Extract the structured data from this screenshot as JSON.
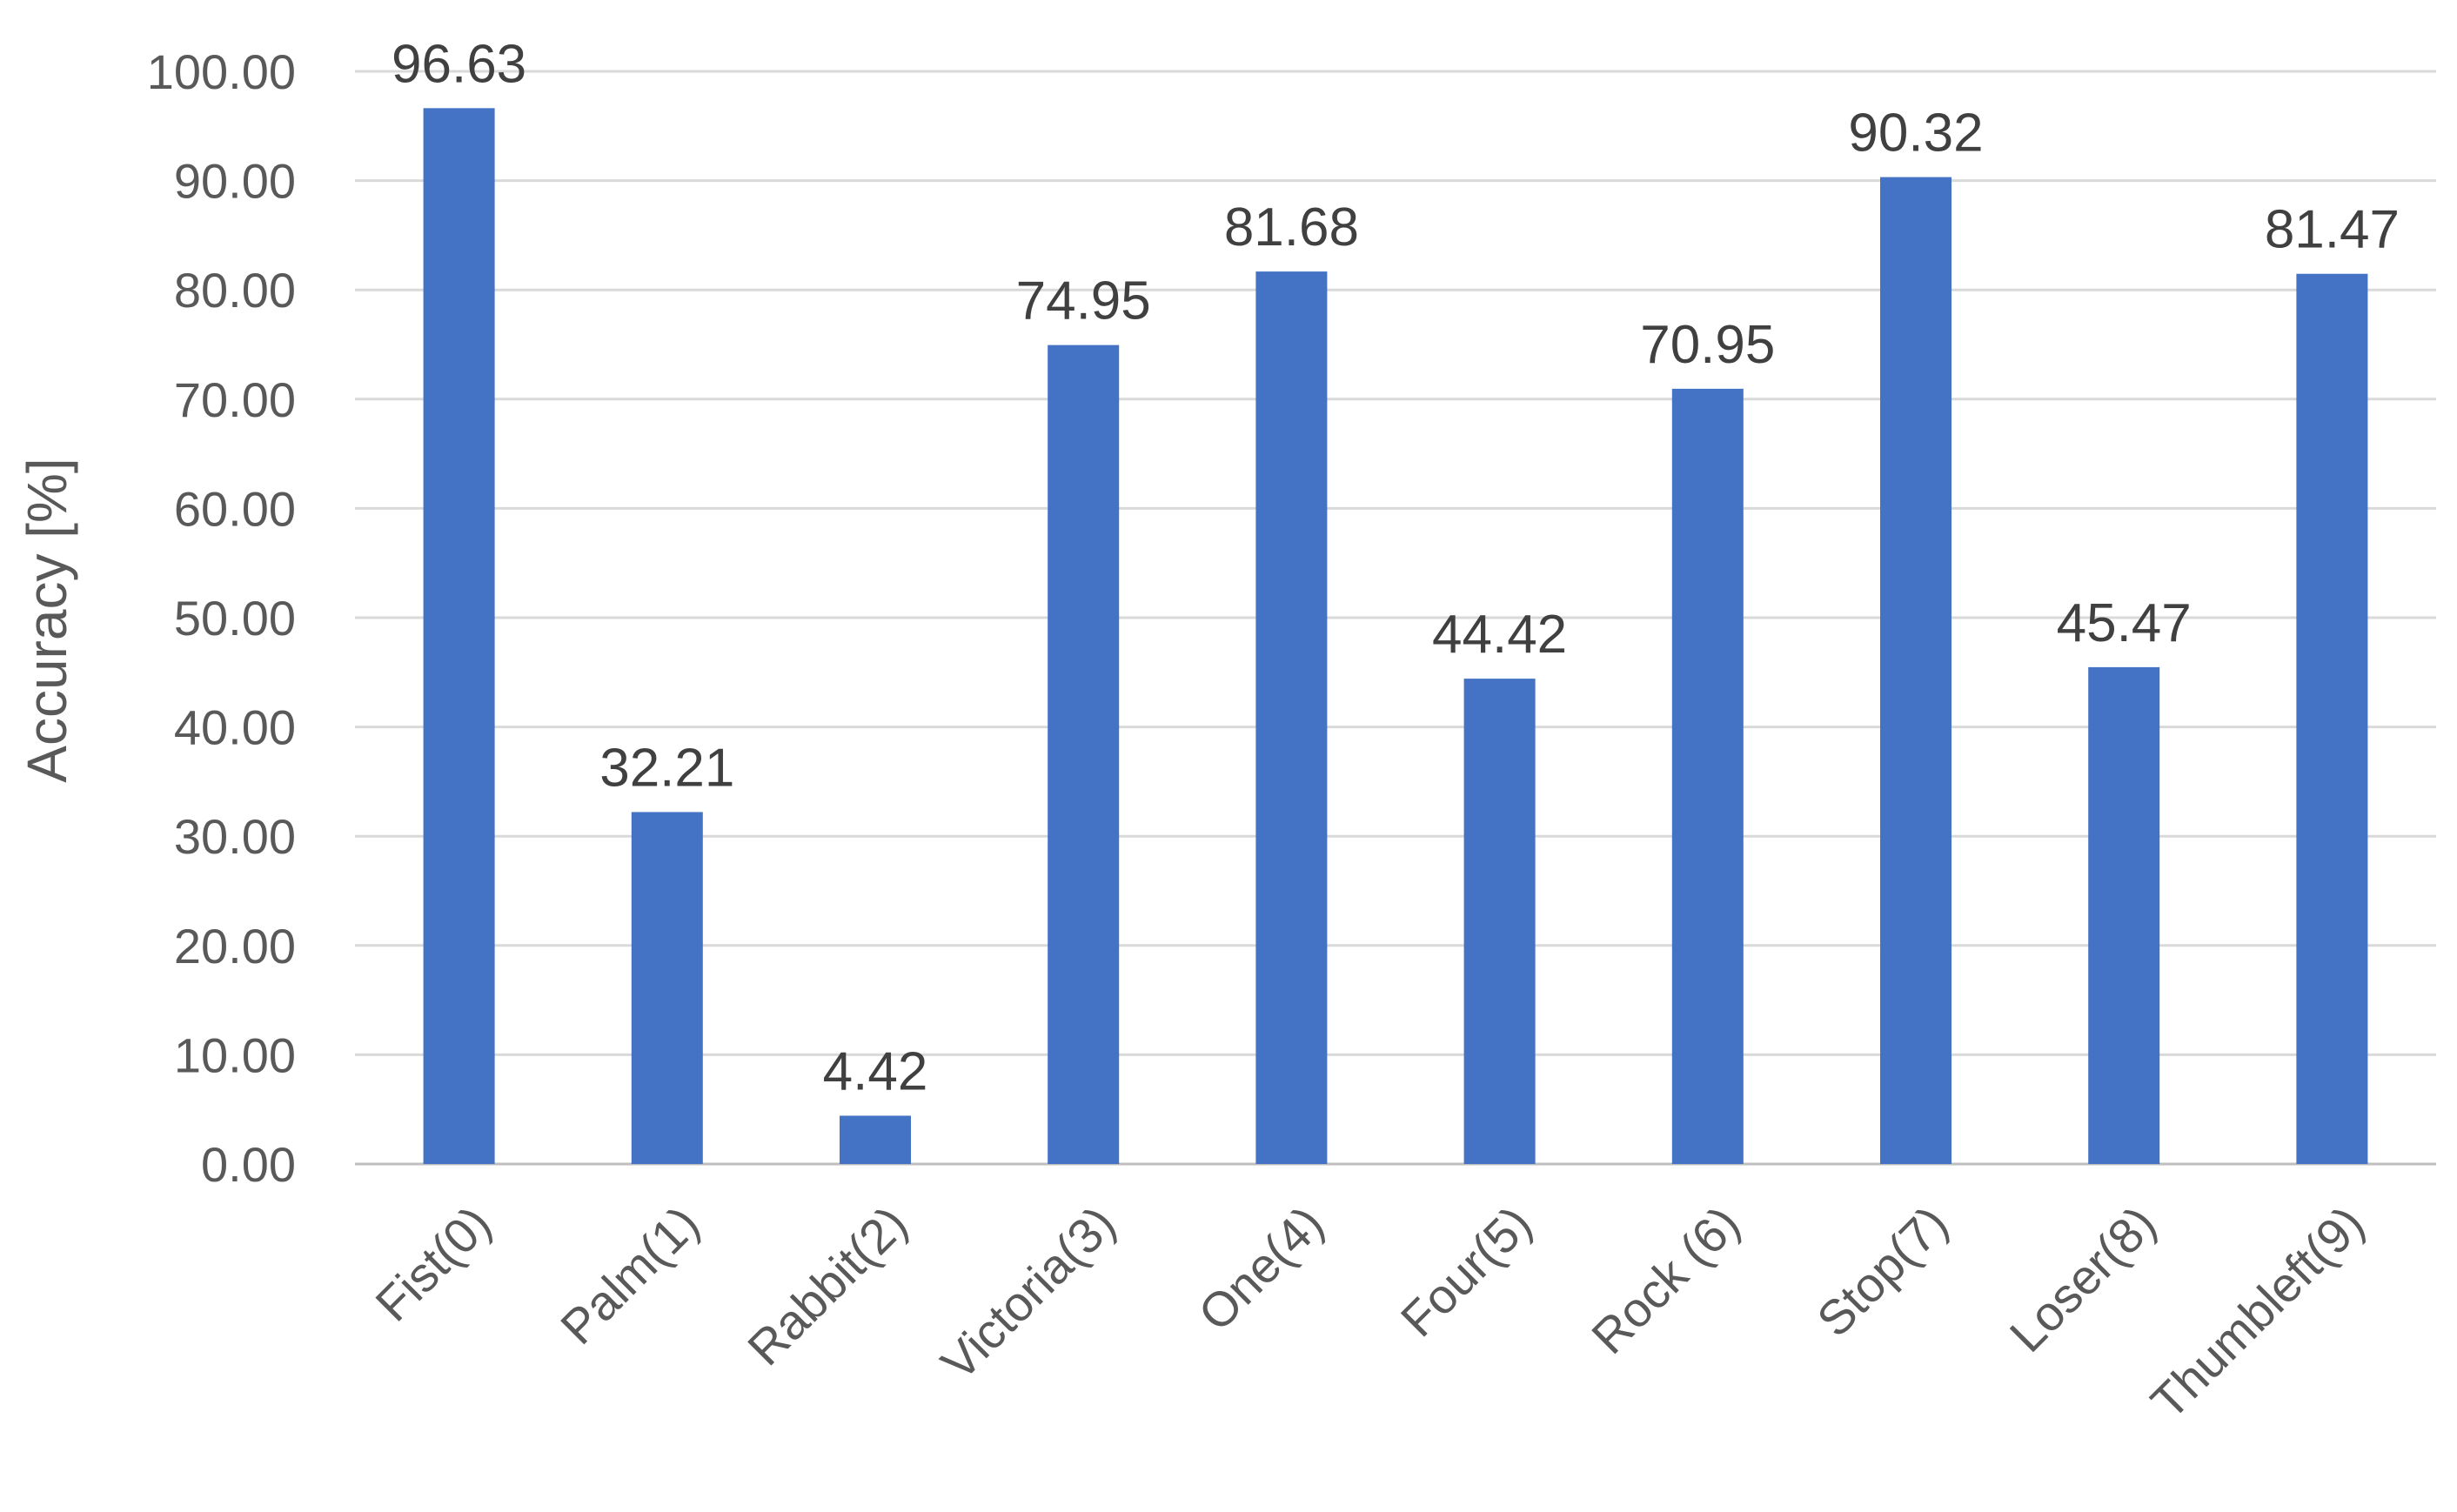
{
  "chart_data": {
    "type": "bar",
    "categories": [
      "Fist(0)",
      "Palm(1)",
      "Rabbit(2)",
      "Victoria(3)",
      "One(4)",
      "Four(5)",
      "Rock (6)",
      "Stop(7)",
      "Loser(8)",
      "Thumbleft(9)"
    ],
    "series": [
      {
        "values": [
          96.63,
          32.21,
          4.42,
          74.95,
          81.68,
          44.42,
          70.95,
          90.32,
          45.47,
          81.47
        ],
        "data_labels": [
          "96.63",
          "32.21",
          "4.42",
          "74.95",
          "81.68",
          "44.42",
          "70.95",
          "90.32",
          "45.47",
          "81.47"
        ]
      }
    ],
    "title": "",
    "xlabel": "",
    "ylabel": "Accuracy [%]",
    "ylim": [
      0,
      100
    ],
    "yticks": [
      0,
      10,
      20,
      30,
      40,
      50,
      60,
      70,
      80,
      90,
      100
    ],
    "ytick_labels": [
      "0.00",
      "10.00",
      "20.00",
      "30.00",
      "40.00",
      "50.00",
      "60.00",
      "70.00",
      "80.00",
      "90.00",
      "100.00"
    ],
    "grid": true,
    "legend": "none",
    "colors": {
      "bar": "#4472c4"
    }
  }
}
